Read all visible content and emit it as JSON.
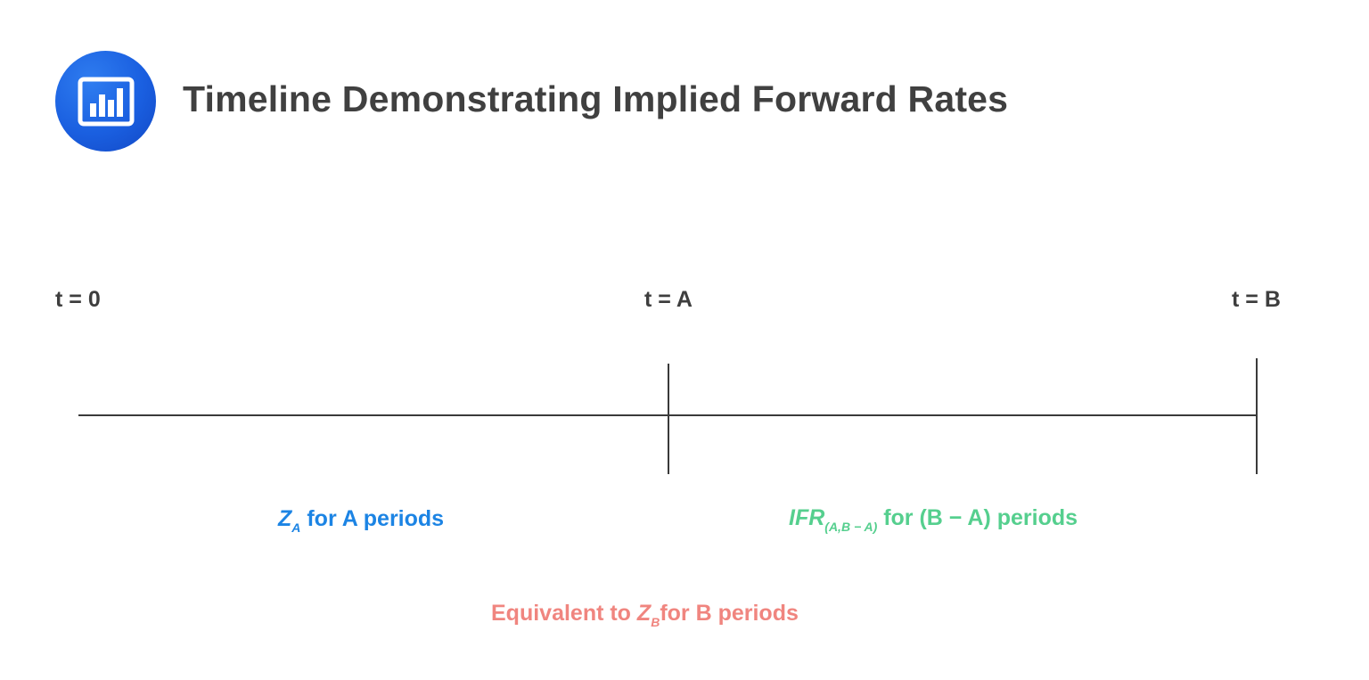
{
  "header": {
    "title": "Timeline Demonstrating Implied Forward Rates",
    "logo_icon": "bar-chart-icon"
  },
  "timeline": {
    "ticks": [
      {
        "id": "t0",
        "label": "t = 0"
      },
      {
        "id": "tA",
        "label": "t = A"
      },
      {
        "id": "tB",
        "label": "t = B"
      }
    ]
  },
  "segments": {
    "first": {
      "symbol": "Z",
      "subscript": "A",
      "text": " for A periods",
      "color": "#1c84e4"
    },
    "second": {
      "symbol": "IFR",
      "subscript": "(A,B − A)",
      "text": " for (B − A) periods",
      "color": "#55cf8e"
    },
    "equivalence": {
      "prefix": "Equivalent to ",
      "symbol": "Z",
      "subscript": "B",
      "text": "for B periods",
      "color": "#f0857f"
    }
  },
  "colors": {
    "title": "#404040",
    "line": "#3a3a3a",
    "logo": "#1a5fe0"
  }
}
